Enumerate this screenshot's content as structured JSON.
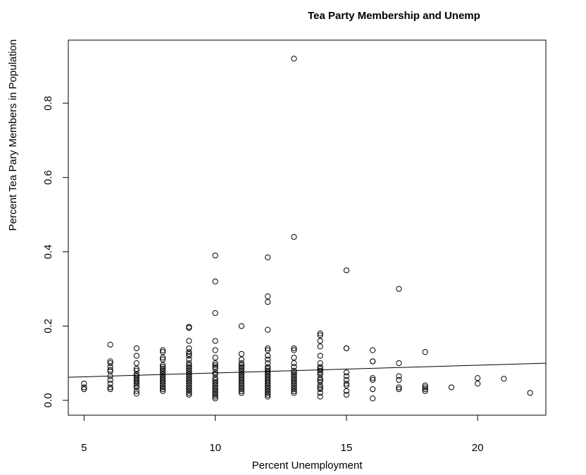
{
  "chart_data": {
    "type": "scatter",
    "title": "Tea Party Membership and Unemp",
    "xlabel": "Percent Unemployment",
    "ylabel": "Percent Tea Pary Members in Population",
    "xlim": [
      4.4,
      22.6
    ],
    "ylim": [
      -0.04,
      0.97
    ],
    "x_ticks": [
      "5",
      "10",
      "15",
      "20"
    ],
    "x_tick_values": [
      5,
      10,
      15,
      20
    ],
    "y_ticks": [
      "0.0",
      "0.2",
      "0.4",
      "0.6",
      "0.8"
    ],
    "y_tick_values": [
      0,
      0.2,
      0.4,
      0.6,
      0.8
    ],
    "marker": "open-circle",
    "regression_line": {
      "x": [
        4.4,
        22.6
      ],
      "y": [
        0.062,
        0.1
      ]
    },
    "points": [
      [
        5,
        0.045
      ],
      [
        5,
        0.035
      ],
      [
        5,
        0.03
      ],
      [
        6,
        0.15
      ],
      [
        6,
        0.105
      ],
      [
        6,
        0.1
      ],
      [
        6,
        0.09
      ],
      [
        6,
        0.082
      ],
      [
        6,
        0.078
      ],
      [
        6,
        0.065
      ],
      [
        6,
        0.055
      ],
      [
        6,
        0.045
      ],
      [
        6,
        0.035
      ],
      [
        6,
        0.03
      ],
      [
        7,
        0.14
      ],
      [
        7,
        0.12
      ],
      [
        7,
        0.1
      ],
      [
        7,
        0.085
      ],
      [
        7,
        0.08
      ],
      [
        7,
        0.07
      ],
      [
        7,
        0.065
      ],
      [
        7,
        0.06
      ],
      [
        7,
        0.055
      ],
      [
        7,
        0.05
      ],
      [
        7,
        0.045
      ],
      [
        7,
        0.04
      ],
      [
        7,
        0.035
      ],
      [
        7,
        0.025
      ],
      [
        7,
        0.018
      ],
      [
        8,
        0.135
      ],
      [
        8,
        0.13
      ],
      [
        8,
        0.115
      ],
      [
        8,
        0.11
      ],
      [
        8,
        0.095
      ],
      [
        8,
        0.09
      ],
      [
        8,
        0.085
      ],
      [
        8,
        0.08
      ],
      [
        8,
        0.075
      ],
      [
        8,
        0.07
      ],
      [
        8,
        0.065
      ],
      [
        8,
        0.06
      ],
      [
        8,
        0.055
      ],
      [
        8,
        0.05
      ],
      [
        8,
        0.045
      ],
      [
        8,
        0.04
      ],
      [
        8,
        0.035
      ],
      [
        8,
        0.03
      ],
      [
        8,
        0.025
      ],
      [
        9,
        0.198
      ],
      [
        9,
        0.195
      ],
      [
        9,
        0.16
      ],
      [
        9,
        0.14
      ],
      [
        9,
        0.13
      ],
      [
        9,
        0.125
      ],
      [
        9,
        0.12
      ],
      [
        9,
        0.11
      ],
      [
        9,
        0.1
      ],
      [
        9,
        0.095
      ],
      [
        9,
        0.09
      ],
      [
        9,
        0.085
      ],
      [
        9,
        0.08
      ],
      [
        9,
        0.075
      ],
      [
        9,
        0.07
      ],
      [
        9,
        0.065
      ],
      [
        9,
        0.06
      ],
      [
        9,
        0.055
      ],
      [
        9,
        0.05
      ],
      [
        9,
        0.045
      ],
      [
        9,
        0.04
      ],
      [
        9,
        0.035
      ],
      [
        9,
        0.03
      ],
      [
        9,
        0.025
      ],
      [
        9,
        0.02
      ],
      [
        9,
        0.015
      ],
      [
        10,
        0.39
      ],
      [
        10,
        0.32
      ],
      [
        10,
        0.235
      ],
      [
        10,
        0.16
      ],
      [
        10,
        0.135
      ],
      [
        10,
        0.115
      ],
      [
        10,
        0.1
      ],
      [
        10,
        0.095
      ],
      [
        10,
        0.09
      ],
      [
        10,
        0.085
      ],
      [
        10,
        0.075
      ],
      [
        10,
        0.07
      ],
      [
        10,
        0.06
      ],
      [
        10,
        0.055
      ],
      [
        10,
        0.05
      ],
      [
        10,
        0.045
      ],
      [
        10,
        0.04
      ],
      [
        10,
        0.035
      ],
      [
        10,
        0.03
      ],
      [
        10,
        0.025
      ],
      [
        10,
        0.02
      ],
      [
        10,
        0.015
      ],
      [
        10,
        0.01
      ],
      [
        10,
        0.005
      ],
      [
        11,
        0.2
      ],
      [
        11,
        0.125
      ],
      [
        11,
        0.11
      ],
      [
        11,
        0.1
      ],
      [
        11,
        0.095
      ],
      [
        11,
        0.09
      ],
      [
        11,
        0.085
      ],
      [
        11,
        0.08
      ],
      [
        11,
        0.075
      ],
      [
        11,
        0.07
      ],
      [
        11,
        0.065
      ],
      [
        11,
        0.06
      ],
      [
        11,
        0.055
      ],
      [
        11,
        0.05
      ],
      [
        11,
        0.045
      ],
      [
        11,
        0.04
      ],
      [
        11,
        0.035
      ],
      [
        11,
        0.03
      ],
      [
        11,
        0.025
      ],
      [
        11,
        0.02
      ],
      [
        12,
        0.385
      ],
      [
        12,
        0.28
      ],
      [
        12,
        0.265
      ],
      [
        12,
        0.19
      ],
      [
        12,
        0.14
      ],
      [
        12,
        0.135
      ],
      [
        12,
        0.12
      ],
      [
        12,
        0.11
      ],
      [
        12,
        0.1
      ],
      [
        12,
        0.09
      ],
      [
        12,
        0.085
      ],
      [
        12,
        0.08
      ],
      [
        12,
        0.075
      ],
      [
        12,
        0.07
      ],
      [
        12,
        0.065
      ],
      [
        12,
        0.06
      ],
      [
        12,
        0.055
      ],
      [
        12,
        0.05
      ],
      [
        12,
        0.045
      ],
      [
        12,
        0.04
      ],
      [
        12,
        0.035
      ],
      [
        12,
        0.03
      ],
      [
        12,
        0.025
      ],
      [
        12,
        0.02
      ],
      [
        12,
        0.015
      ],
      [
        12,
        0.01
      ],
      [
        13,
        0.92
      ],
      [
        13,
        0.44
      ],
      [
        13,
        0.14
      ],
      [
        13,
        0.135
      ],
      [
        13,
        0.115
      ],
      [
        13,
        0.1
      ],
      [
        13,
        0.09
      ],
      [
        13,
        0.08
      ],
      [
        13,
        0.075
      ],
      [
        13,
        0.07
      ],
      [
        13,
        0.065
      ],
      [
        13,
        0.06
      ],
      [
        13,
        0.055
      ],
      [
        13,
        0.05
      ],
      [
        13,
        0.045
      ],
      [
        13,
        0.04
      ],
      [
        13,
        0.035
      ],
      [
        13,
        0.03
      ],
      [
        13,
        0.025
      ],
      [
        13,
        0.02
      ],
      [
        14,
        0.18
      ],
      [
        14,
        0.175
      ],
      [
        14,
        0.16
      ],
      [
        14,
        0.145
      ],
      [
        14,
        0.12
      ],
      [
        14,
        0.1
      ],
      [
        14,
        0.09
      ],
      [
        14,
        0.085
      ],
      [
        14,
        0.08
      ],
      [
        14,
        0.075
      ],
      [
        14,
        0.07
      ],
      [
        14,
        0.06
      ],
      [
        14,
        0.055
      ],
      [
        14,
        0.05
      ],
      [
        14,
        0.04
      ],
      [
        14,
        0.035
      ],
      [
        14,
        0.03
      ],
      [
        14,
        0.02
      ],
      [
        14,
        0.01
      ],
      [
        15,
        0.35
      ],
      [
        15,
        0.14
      ],
      [
        15,
        0.14
      ],
      [
        15,
        0.075
      ],
      [
        15,
        0.065
      ],
      [
        15,
        0.055
      ],
      [
        15,
        0.045
      ],
      [
        15,
        0.04
      ],
      [
        15,
        0.025
      ],
      [
        15,
        0.015
      ],
      [
        16,
        0.135
      ],
      [
        16,
        0.105
      ],
      [
        16,
        0.105
      ],
      [
        16,
        0.06
      ],
      [
        16,
        0.055
      ],
      [
        16,
        0.03
      ],
      [
        16,
        0.005
      ],
      [
        17,
        0.3
      ],
      [
        17,
        0.1
      ],
      [
        17,
        0.065
      ],
      [
        17,
        0.055
      ],
      [
        17,
        0.035
      ],
      [
        17,
        0.03
      ],
      [
        18,
        0.13
      ],
      [
        18,
        0.04
      ],
      [
        18,
        0.035
      ],
      [
        18,
        0.03
      ],
      [
        18,
        0.025
      ],
      [
        19,
        0.035
      ],
      [
        20,
        0.06
      ],
      [
        20,
        0.045
      ],
      [
        21,
        0.058
      ],
      [
        22,
        0.02
      ]
    ]
  }
}
